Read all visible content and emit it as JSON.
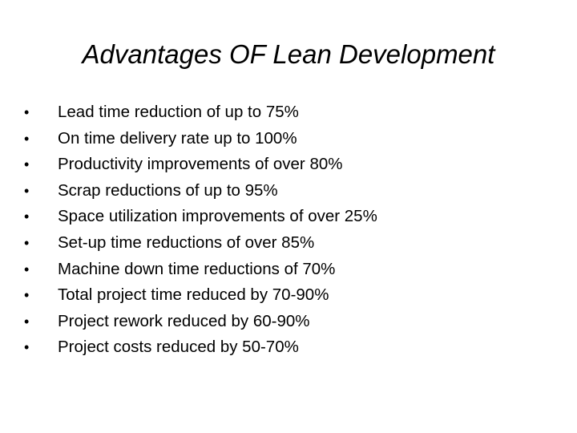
{
  "slide": {
    "title": "Advantages OF Lean Development",
    "bullet_char": "•",
    "items": [
      "Lead time reduction of up to 75%",
      "On time delivery rate up to 100%",
      "Productivity improvements of over 80%",
      "Scrap reductions of up to 95%",
      "Space utilization improvements of over 25%",
      "Set-up time reductions of over 85%",
      "Machine down time reductions of 70%",
      "Total project time reduced by 70-90%",
      "Project rework reduced by 60-90%",
      "Project costs reduced by 50-70%"
    ]
  }
}
